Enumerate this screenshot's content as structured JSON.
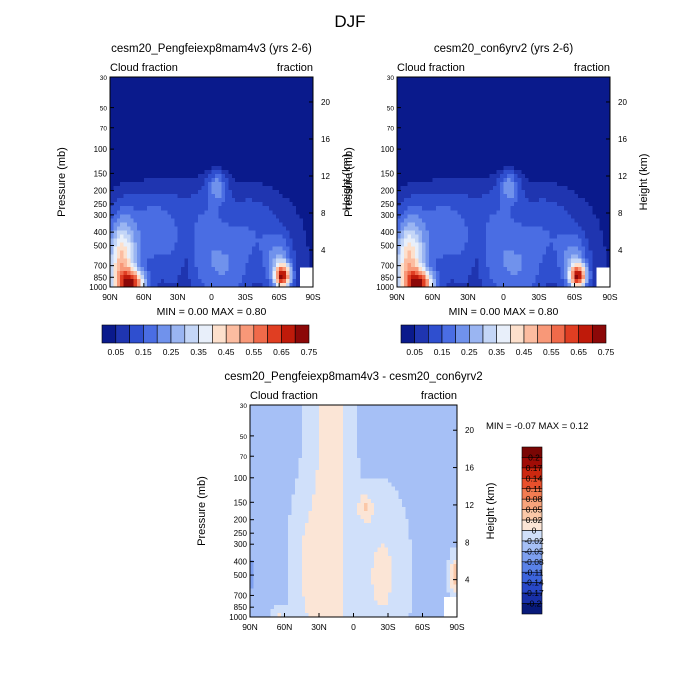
{
  "title": "DJF",
  "chart_data": [
    {
      "type": "heatmap",
      "title": "cesm20_Pengfeiexp8mam4v3 (yrs 2-6)",
      "subtitle_left": "Cloud fraction",
      "subtitle_right": "fraction",
      "xlabel": "",
      "ylabel": "Pressure (mb)",
      "ylabel_right": "Height (km)",
      "x_ticks": [
        "90N",
        "60N",
        "30N",
        "0",
        "30S",
        "60S",
        "90S"
      ],
      "y_ticks": [
        "30",
        "50",
        "70",
        "100",
        "150",
        "200",
        "250",
        "300",
        "400",
        "500",
        "700",
        "850",
        "1000"
      ],
      "y_ticks_right": [
        "20",
        "16",
        "12",
        "8",
        "4"
      ],
      "xlim": [
        90,
        -90
      ],
      "ylim": [
        1000,
        30
      ],
      "stats": "MIN =   0.00  MAX =   0.80",
      "colorbar_labels": [
        "0.05",
        "0.15",
        "0.25",
        "0.35",
        "0.45",
        "0.55",
        "0.65",
        "0.75"
      ]
    },
    {
      "type": "heatmap",
      "title": "cesm20_con6yrv2 (yrs 2-6)",
      "subtitle_left": "Cloud fraction",
      "subtitle_right": "fraction",
      "xlabel": "",
      "ylabel": "Pressure (mb)",
      "ylabel_right": "Height (km)",
      "x_ticks": [
        "90N",
        "60N",
        "30N",
        "0",
        "30S",
        "60S",
        "90S"
      ],
      "y_ticks": [
        "30",
        "50",
        "70",
        "100",
        "150",
        "200",
        "250",
        "300",
        "400",
        "500",
        "700",
        "850",
        "1000"
      ],
      "y_ticks_right": [
        "20",
        "16",
        "12",
        "8",
        "4"
      ],
      "xlim": [
        90,
        -90
      ],
      "ylim": [
        1000,
        30
      ],
      "stats": "MIN =   0.00  MAX =   0.80",
      "colorbar_labels": [
        "0.05",
        "0.15",
        "0.25",
        "0.35",
        "0.45",
        "0.55",
        "0.65",
        "0.75"
      ]
    },
    {
      "type": "heatmap",
      "title": "cesm20_Pengfeiexp8mam4v3 - cesm20_con6yrv2",
      "subtitle_left": "Cloud fraction",
      "subtitle_right": "fraction",
      "xlabel": "",
      "ylabel": "Pressure (mb)",
      "ylabel_right": "Height (km)",
      "x_ticks": [
        "90N",
        "60N",
        "30N",
        "0",
        "30S",
        "60S",
        "90S"
      ],
      "y_ticks": [
        "30",
        "50",
        "70",
        "100",
        "150",
        "200",
        "250",
        "300",
        "400",
        "500",
        "700",
        "850",
        "1000"
      ],
      "y_ticks_right": [
        "20",
        "16",
        "12",
        "8",
        "4"
      ],
      "xlim": [
        90,
        -90
      ],
      "ylim": [
        1000,
        30
      ],
      "stats": "MIN =  -0.07  MAX =   0.12",
      "colorbar_labels": [
        "0.2",
        "0.17",
        "0.14",
        "0.11",
        "0.08",
        "0.05",
        "0.02",
        "0",
        "-0.02",
        "-0.05",
        "-0.08",
        "-0.11",
        "-0.14",
        "-0.17",
        "-0.2"
      ]
    }
  ],
  "colors": {
    "cloud_palette": [
      "#0a1a8c",
      "#1f35b0",
      "#2f4fcf",
      "#4a6de3",
      "#7092ec",
      "#9ab5f2",
      "#c4d6f7",
      "#e8effa",
      "#fde0cc",
      "#fcbca0",
      "#f89878",
      "#f06a4a",
      "#e03e22",
      "#bf1a0a",
      "#8c0808"
    ],
    "diff_palette": [
      "#081a7a",
      "#1830a8",
      "#2848c8",
      "#3c64dc",
      "#5a82e8",
      "#7ea0f0",
      "#a6c0f6",
      "#d0e0fa",
      "#fbe5d6",
      "#fbc8a8",
      "#f8a47c",
      "#f27c52",
      "#e8502c",
      "#cc2810",
      "#a00c06",
      "#7a0604"
    ]
  }
}
